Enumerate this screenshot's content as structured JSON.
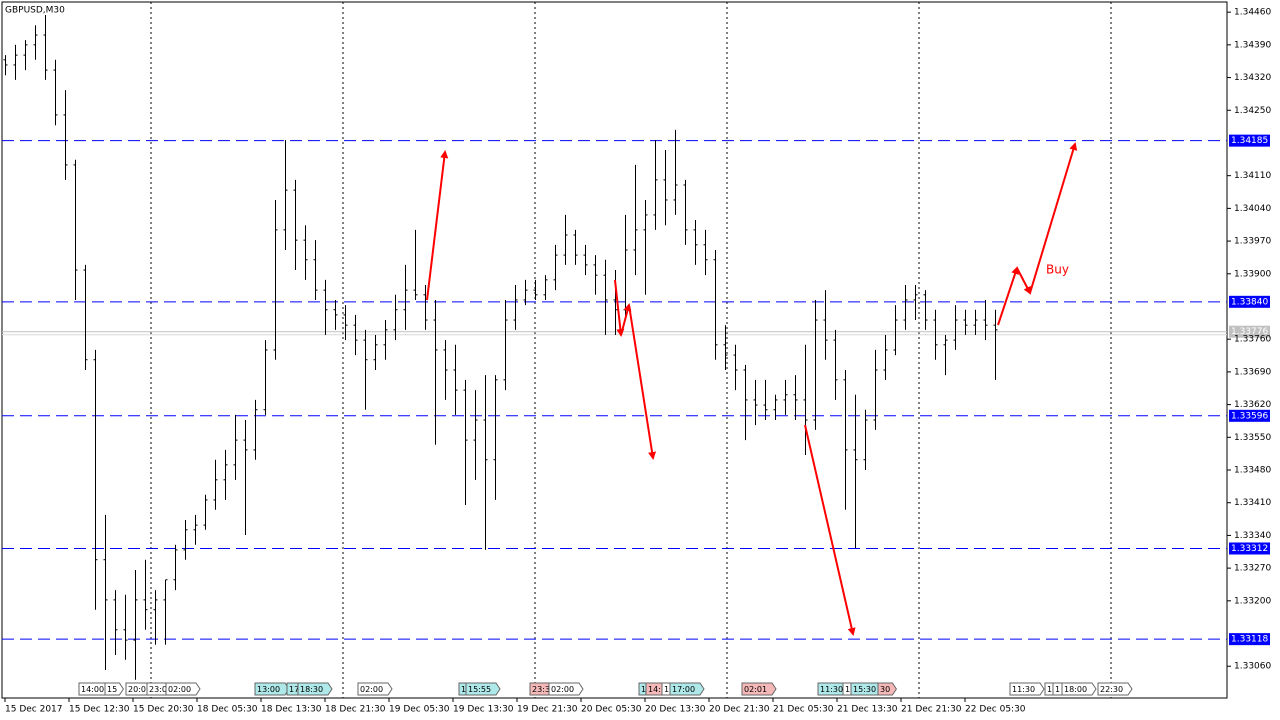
{
  "chart_data": {
    "type": "ohlc",
    "title": "GBPUSD,M30",
    "color": "#000000",
    "ylim": [
      1.32992,
      1.34486
    ],
    "yticks": [
      {
        "value": 1.3446,
        "label": "1.34460"
      },
      {
        "value": 1.3439,
        "label": "1.34390"
      },
      {
        "value": 1.3432,
        "label": "1.34320"
      },
      {
        "value": 1.3425,
        "label": "1.34250"
      },
      {
        "value": 1.3411,
        "label": "1.34110"
      },
      {
        "value": 1.3404,
        "label": "1.34040"
      },
      {
        "value": 1.3397,
        "label": "1.33970"
      },
      {
        "value": 1.339,
        "label": "1.33900"
      },
      {
        "value": 1.3376,
        "label": "1.33760"
      },
      {
        "value": 1.3369,
        "label": "1.33690"
      },
      {
        "value": 1.3362,
        "label": "1.33620"
      },
      {
        "value": 1.3355,
        "label": "1.33550"
      },
      {
        "value": 1.3348,
        "label": "1.33480"
      },
      {
        "value": 1.3341,
        "label": "1.33410"
      },
      {
        "value": 1.3334,
        "label": "1.33340"
      },
      {
        "value": 1.3327,
        "label": "1.33270"
      },
      {
        "value": 1.332,
        "label": "1.33200"
      },
      {
        "value": 1.3306,
        "label": "1.33060"
      }
    ],
    "levels": [
      1.34185,
      {
        "value": 1.3384,
        "label": "1.33840"
      },
      1.33596,
      1.33312,
      1.33118
    ],
    "level_color": "#0000ff",
    "last_price": 1.33776,
    "annotation": "Buy",
    "xtick_labels": [
      "15 Dec 2017",
      "15 Dec 12:30",
      "15 Dec 20:30",
      "18 Dec 05:30",
      "18 Dec 13:30",
      "18 Dec 21:30",
      "19 Dec 05:30",
      "19 Dec 13:30",
      "19 Dec 21:30",
      "20 Dec 05:30",
      "20 Dec 13:30",
      "20 Dec 21:30",
      "21 Dec 05:30",
      "21 Dec 13:30",
      "21 Dec 21:30",
      "22 Dec 05:30"
    ],
    "events": [
      {
        "label": "14:00",
        "color": "#ffffff"
      },
      {
        "label": "15",
        "color": "#ffffff"
      },
      {
        "label": "20:0",
        "color": "#ffffff"
      },
      {
        "label": "23:0",
        "color": "#ffffff"
      },
      {
        "label": "02:00",
        "color": "#ffffff"
      },
      {
        "label": "13:00",
        "color": "#aee8e8"
      },
      {
        "label": "17",
        "color": "#aee8e8"
      },
      {
        "label": "18:30",
        "color": "#aee8e8"
      },
      {
        "label": "02:00",
        "color": "#ffffff"
      },
      {
        "label": "1",
        "color": "#aee8e8"
      },
      {
        "label": "15:55",
        "color": "#aee8e8"
      },
      {
        "label": "23:3",
        "color": "#f4b8b8"
      },
      {
        "label": "02:00",
        "color": "#ffffff"
      },
      {
        "label": "1",
        "color": "#aee8e8"
      },
      {
        "label": "14:",
        "color": "#f4b8b8"
      },
      {
        "label": "1",
        "color": "#ffffff"
      },
      {
        "label": "17:00",
        "color": "#aee8e8"
      },
      {
        "label": "02:01",
        "color": "#f4b8b8"
      },
      {
        "label": "11:30",
        "color": "#aee8e8"
      },
      {
        "label": "1",
        "color": "#ffffff"
      },
      {
        "label": "15:30",
        "color": "#aee8e8"
      },
      {
        "label": "30",
        "color": "#f4b8b8"
      },
      {
        "label": "11:30",
        "color": "#ffffff"
      },
      {
        "label": "1",
        "color": "#ffffff"
      },
      {
        "label": "1",
        "color": "#ffffff"
      },
      {
        "label": "18:00",
        "color": "#ffffff"
      },
      {
        "label": "22:30",
        "color": "#ffffff"
      }
    ],
    "bars": [
      [
        1.34358,
        1.34368,
        1.34325,
        1.34347
      ],
      [
        1.34347,
        1.3439,
        1.34315,
        1.34368
      ],
      [
        1.34368,
        1.344,
        1.34336,
        1.3439
      ],
      [
        1.3439,
        1.34432,
        1.34358,
        1.34411
      ],
      [
        1.34411,
        1.34454,
        1.34315,
        1.34336
      ],
      [
        1.34336,
        1.34358,
        1.34218,
        1.3424
      ],
      [
        1.3424,
        1.34293,
        1.34101,
        1.34133
      ],
      [
        1.34133,
        1.34144,
        1.33844,
        1.33908
      ],
      [
        1.33908,
        1.33919,
        1.33694,
        1.33716
      ],
      [
        1.33716,
        1.33737,
        1.33181,
        1.33288
      ],
      [
        1.33288,
        1.33384,
        1.33052,
        1.33202
      ],
      [
        1.33202,
        1.33223,
        1.33084,
        1.33138
      ],
      [
        1.33138,
        1.33213,
        1.33074,
        1.33116
      ],
      [
        1.33116,
        1.33266,
        1.33031,
        1.33202
      ],
      [
        1.33202,
        1.33288,
        1.33138,
        1.33181
      ],
      [
        1.33181,
        1.33223,
        1.33106,
        1.33202
      ],
      [
        1.33202,
        1.33245,
        1.33106,
        1.33245
      ],
      [
        1.33245,
        1.3332,
        1.33223,
        1.33309
      ],
      [
        1.33309,
        1.33373,
        1.33288,
        1.33352
      ],
      [
        1.33352,
        1.33384,
        1.3332,
        1.33362
      ],
      [
        1.33362,
        1.33427,
        1.33352,
        1.33416
      ],
      [
        1.33416,
        1.33502,
        1.33395,
        1.33459
      ],
      [
        1.33459,
        1.33523,
        1.33416,
        1.33491
      ],
      [
        1.33491,
        1.33598,
        1.33459,
        1.33544
      ],
      [
        1.33544,
        1.33587,
        1.33341,
        1.33523
      ],
      [
        1.33523,
        1.3363,
        1.33502,
        1.33609
      ],
      [
        1.33609,
        1.33758,
        1.33598,
        1.33737
      ],
      [
        1.33737,
        1.34058,
        1.33716,
        1.33994
      ],
      [
        1.33994,
        1.34186,
        1.33951,
        1.34079
      ],
      [
        1.34079,
        1.34101,
        1.33908,
        1.33972
      ],
      [
        1.33972,
        1.34004,
        1.33887,
        1.3393
      ],
      [
        1.3393,
        1.33972,
        1.33844,
        1.33865
      ],
      [
        1.33865,
        1.33887,
        1.33769,
        1.33823
      ],
      [
        1.33823,
        1.33844,
        1.3378,
        1.33812
      ],
      [
        1.33812,
        1.33833,
        1.33758,
        1.3379
      ],
      [
        1.3379,
        1.33812,
        1.33726,
        1.33758
      ],
      [
        1.33758,
        1.3378,
        1.33609,
        1.33716
      ],
      [
        1.33716,
        1.33769,
        1.33694,
        1.33748
      ],
      [
        1.33748,
        1.33801,
        1.33716,
        1.3378
      ],
      [
        1.3378,
        1.33855,
        1.33758,
        1.33823
      ],
      [
        1.33823,
        1.33919,
        1.3378,
        1.33865
      ],
      [
        1.33865,
        1.33994,
        1.33844,
        1.33855
      ],
      [
        1.33855,
        1.33876,
        1.3378,
        1.33801
      ],
      [
        1.33801,
        1.33844,
        1.33534,
        1.33737
      ],
      [
        1.33737,
        1.33758,
        1.3363,
        1.33694
      ],
      [
        1.33694,
        1.33748,
        1.33598,
        1.33651
      ],
      [
        1.33651,
        1.33673,
        1.33405,
        1.33544
      ],
      [
        1.33544,
        1.33651,
        1.33459,
        1.33587
      ],
      [
        1.33587,
        1.33683,
        1.33309,
        1.33502
      ],
      [
        1.33502,
        1.33683,
        1.33416,
        1.33673
      ],
      [
        1.33673,
        1.33844,
        1.33651,
        1.33801
      ],
      [
        1.33801,
        1.33876,
        1.3378,
        1.33844
      ],
      [
        1.33844,
        1.33887,
        1.33833,
        1.33865
      ],
      [
        1.33865,
        1.33887,
        1.33844,
        1.33855
      ],
      [
        1.33855,
        1.33897,
        1.33844,
        1.33887
      ],
      [
        1.33887,
        1.33962,
        1.33865,
        1.3394
      ],
      [
        1.3394,
        1.34026,
        1.33919,
        1.33983
      ],
      [
        1.33983,
        1.33994,
        1.33919,
        1.3394
      ],
      [
        1.3394,
        1.33962,
        1.33897,
        1.33919
      ],
      [
        1.33919,
        1.3394,
        1.33855,
        1.33897
      ],
      [
        1.33897,
        1.3393,
        1.33769,
        1.33844
      ],
      [
        1.33844,
        1.33908,
        1.33769,
        1.33823
      ],
      [
        1.33823,
        1.34026,
        1.33801,
        1.33951
      ],
      [
        1.33951,
        1.34133,
        1.33897,
        1.33994
      ],
      [
        1.33994,
        1.34058,
        1.33855,
        1.34026
      ],
      [
        1.34026,
        1.34186,
        1.33994,
        1.34101
      ],
      [
        1.34101,
        1.34165,
        1.34004,
        1.34058
      ],
      [
        1.34058,
        1.34208,
        1.34026,
        1.3409
      ],
      [
        1.3409,
        1.34101,
        1.33962,
        1.33994
      ],
      [
        1.33994,
        1.34015,
        1.33919,
        1.33962
      ],
      [
        1.33962,
        1.33994,
        1.33897,
        1.3393
      ],
      [
        1.3393,
        1.33951,
        1.33716,
        1.33748
      ],
      [
        1.33748,
        1.3379,
        1.33694,
        1.33726
      ],
      [
        1.33726,
        1.33748,
        1.33651,
        1.33694
      ],
      [
        1.33694,
        1.33705,
        1.33544,
        1.3363
      ],
      [
        1.3363,
        1.33673,
        1.33576,
        1.33619
      ],
      [
        1.33619,
        1.33673,
        1.33587,
        1.33609
      ],
      [
        1.33609,
        1.33641,
        1.33587,
        1.3363
      ],
      [
        1.3363,
        1.33673,
        1.33598,
        1.33641
      ],
      [
        1.33641,
        1.33683,
        1.33587,
        1.3363
      ],
      [
        1.3363,
        1.33748,
        1.33512,
        1.33587
      ],
      [
        1.33587,
        1.33844,
        1.33566,
        1.33801
      ],
      [
        1.33801,
        1.33865,
        1.33716,
        1.33758
      ],
      [
        1.33758,
        1.3378,
        1.3363,
        1.33673
      ],
      [
        1.33673,
        1.33694,
        1.33395,
        1.33523
      ],
      [
        1.33523,
        1.33641,
        1.33313,
        1.33502
      ],
      [
        1.33502,
        1.33609,
        1.3348,
        1.33587
      ],
      [
        1.33587,
        1.33737,
        1.33566,
        1.33694
      ],
      [
        1.33694,
        1.33769,
        1.33673,
        1.33737
      ],
      [
        1.33737,
        1.33833,
        1.33726,
        1.33801
      ],
      [
        1.33801,
        1.33876,
        1.3378,
        1.33844
      ],
      [
        1.33844,
        1.33876,
        1.33801,
        1.33855
      ],
      [
        1.33855,
        1.33865,
        1.3378,
        1.33801
      ],
      [
        1.33801,
        1.33823,
        1.33716,
        1.33748
      ],
      [
        1.33748,
        1.33769,
        1.33683,
        1.33758
      ],
      [
        1.33758,
        1.33833,
        1.33737,
        1.33801
      ],
      [
        1.33801,
        1.33823,
        1.33769,
        1.3379
      ],
      [
        1.3379,
        1.33823,
        1.33769,
        1.33801
      ],
      [
        1.33801,
        1.33844,
        1.33758,
        1.3379
      ],
      [
        1.3379,
        1.33823,
        1.33673,
        1.3378
      ]
    ]
  }
}
